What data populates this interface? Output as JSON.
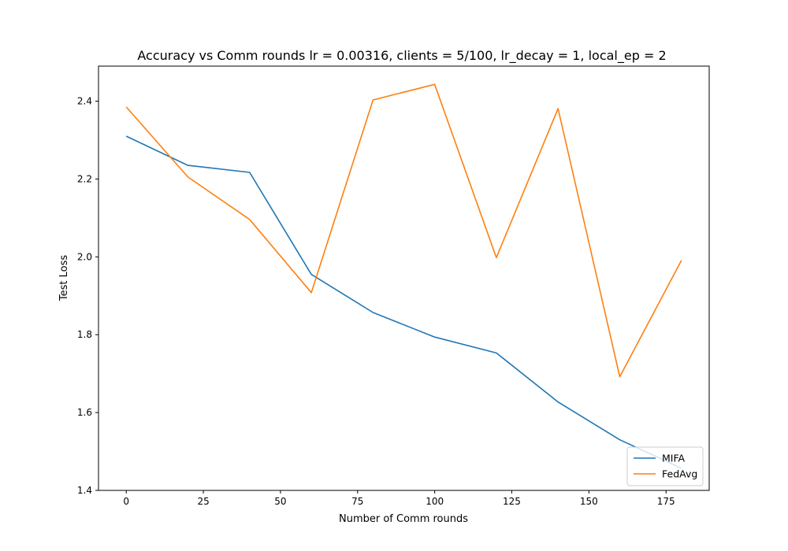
{
  "chart_data": {
    "type": "line",
    "title": "Accuracy vs Comm rounds lr = 0.00316, clients = 5/100, lr_decay = 1, local_ep = 2",
    "xlabel": "Number of Comm rounds",
    "ylabel": "Test Loss",
    "xlim": [
      -9,
      189
    ],
    "ylim": [
      1.4,
      2.49
    ],
    "xticks": [
      0,
      25,
      50,
      75,
      100,
      125,
      150,
      175
    ],
    "yticks": [
      1.4,
      1.6,
      1.8,
      2.0,
      2.2,
      2.4
    ],
    "xtick_labels": [
      "0",
      "25",
      "50",
      "75",
      "100",
      "125",
      "150",
      "175"
    ],
    "ytick_labels": [
      "1.4",
      "1.6",
      "1.8",
      "2.0",
      "2.2",
      "2.4"
    ],
    "grid": false,
    "legend_position": "lower-right",
    "x": [
      0,
      20,
      40,
      60,
      80,
      100,
      120,
      140,
      160,
      180
    ],
    "series": [
      {
        "name": "MIFA",
        "color": "#1f77b4",
        "values": [
          2.31,
          2.235,
          2.217,
          1.955,
          1.857,
          1.794,
          1.753,
          1.627,
          1.53,
          1.457
        ]
      },
      {
        "name": "FedAvg",
        "color": "#ff7f0e",
        "values": [
          2.385,
          2.205,
          2.096,
          1.908,
          2.403,
          2.443,
          1.998,
          2.381,
          1.692,
          1.991
        ]
      }
    ]
  }
}
